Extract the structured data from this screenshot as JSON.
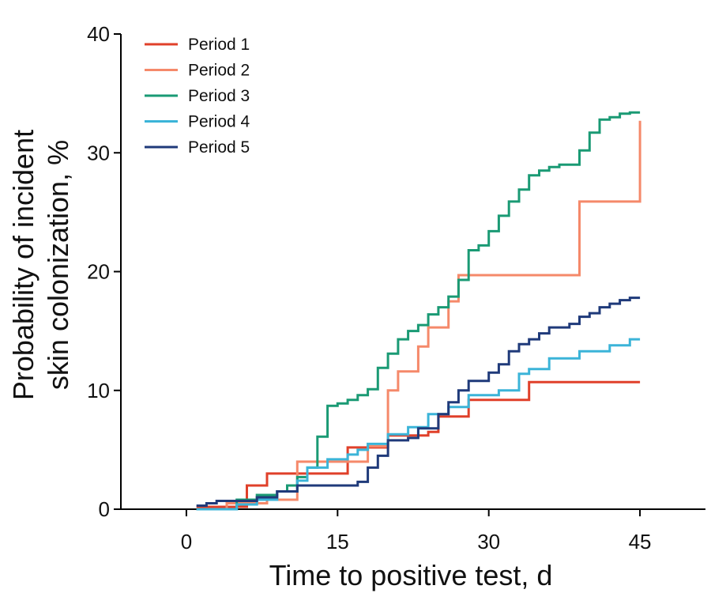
{
  "chart_data": {
    "type": "line",
    "step": true,
    "title": "",
    "xlabel": "Time to positive test, d",
    "ylabel_lines": [
      "Probability of incident",
      "skin colonization, %"
    ],
    "xlim": [
      -6.5,
      51.5
    ],
    "ylim": [
      0,
      40
    ],
    "xticks": [
      0,
      15,
      30,
      45
    ],
    "yticks": [
      0,
      10,
      20,
      30,
      40
    ],
    "xtick_labels": [
      "0",
      "15",
      "30",
      "45"
    ],
    "ytick_labels": [
      "0",
      "10",
      "20",
      "30",
      "40"
    ],
    "legend_position": "top-left",
    "series": [
      {
        "name": "Period 1",
        "color": "#e0402a",
        "x": [
          1,
          6,
          8,
          11,
          16,
          19,
          20,
          24,
          25,
          28,
          34,
          45
        ],
        "y": [
          0.2,
          2.0,
          3.0,
          3.0,
          5.2,
          5.2,
          6.2,
          6.5,
          7.8,
          9.2,
          10.7,
          10.7
        ]
      },
      {
        "name": "Period 2",
        "color": "#f5896a",
        "x": [
          1,
          4,
          8,
          11,
          13,
          18,
          20,
          20.5,
          21,
          23,
          24,
          26,
          27,
          39,
          45,
          45
        ],
        "y": [
          0,
          0.5,
          0.8,
          4.0,
          4.0,
          5.3,
          10.0,
          10.0,
          11.6,
          13.7,
          15.3,
          17.5,
          19.7,
          25.9,
          25.9,
          32.7
        ]
      },
      {
        "name": "Period 3",
        "color": "#1a9a74",
        "x": [
          1,
          5,
          7,
          9,
          10,
          11,
          12,
          13,
          14,
          15,
          16,
          17,
          18,
          19,
          20,
          21,
          22,
          23,
          24,
          25,
          26,
          27,
          28,
          29,
          30,
          31,
          32,
          33,
          34,
          35,
          36,
          37,
          39,
          40,
          41,
          42,
          43,
          44,
          45
        ],
        "y": [
          0,
          0.8,
          1.2,
          1.5,
          2.0,
          2.7,
          3.5,
          6.1,
          8.7,
          8.9,
          9.2,
          9.6,
          10.1,
          11.9,
          13.1,
          14.3,
          15.0,
          15.5,
          16.4,
          17.0,
          17.9,
          19.3,
          21.8,
          22.2,
          23.4,
          24.7,
          25.9,
          26.9,
          28.1,
          28.5,
          28.8,
          29.0,
          30.2,
          31.7,
          32.8,
          33.0,
          33.3,
          33.4,
          33.4
        ]
      },
      {
        "name": "Period 4",
        "color": "#3bb4d8",
        "x": [
          1,
          5,
          7,
          9,
          11,
          12,
          14,
          16,
          17,
          18,
          20,
          22,
          24,
          26,
          28,
          31,
          33,
          34,
          36,
          39,
          42,
          44,
          45
        ],
        "y": [
          0,
          0.4,
          0.8,
          1.5,
          2.4,
          3.5,
          4.2,
          4.6,
          5.0,
          5.5,
          6.3,
          6.9,
          8.0,
          8.6,
          9.6,
          10.0,
          11.4,
          11.8,
          12.7,
          13.3,
          13.8,
          14.3,
          14.3
        ]
      },
      {
        "name": "Period 5",
        "color": "#1f3a7a",
        "x": [
          1,
          2,
          3,
          5,
          7,
          9,
          11,
          14,
          17,
          18,
          19,
          20,
          22,
          23,
          25,
          26,
          27,
          28,
          30,
          31,
          32,
          33,
          34,
          35,
          36,
          38,
          39,
          40,
          41,
          42,
          43,
          44,
          45
        ],
        "y": [
          0.3,
          0.5,
          0.7,
          0.7,
          1.0,
          1.5,
          2.0,
          2.0,
          2.3,
          3.5,
          4.5,
          5.8,
          6.0,
          6.8,
          8.0,
          9.0,
          10.0,
          10.8,
          11.5,
          12.2,
          13.3,
          13.9,
          14.3,
          14.8,
          15.3,
          15.6,
          16.2,
          16.5,
          17.0,
          17.3,
          17.6,
          17.8,
          17.8
        ]
      }
    ]
  }
}
